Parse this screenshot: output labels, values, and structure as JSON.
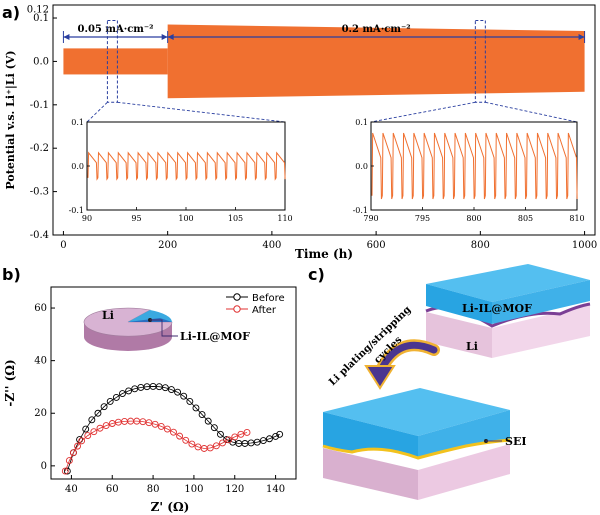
{
  "panels": {
    "a": "a)",
    "b": "b)",
    "c": "c)"
  },
  "chart_a": {
    "type": "line",
    "ylabel": "Potential v.s. Li⁺|Li (V)",
    "xlabel": "Time (h)",
    "xlim": [
      -20,
      1020
    ],
    "ylim": [
      -0.4,
      0.13
    ],
    "xticks": [
      "0",
      "200",
      "400",
      "600",
      "800",
      "1000"
    ],
    "yticks": [
      "0.1",
      "0.0",
      "-0.1",
      "-0.2",
      "-0.3",
      "-0.4"
    ],
    "yticks_top": "0.12",
    "regions": [
      {
        "label": "0.05 mA·cm⁻²",
        "x_start": 0,
        "x_end": 200,
        "amplitude": 0.03
      },
      {
        "label": "0.2 mA·cm⁻²",
        "x_start": 200,
        "x_end": 1000,
        "amplitude_start": 0.085,
        "amplitude_end": 0.07
      }
    ],
    "series_color": "#f07030",
    "insets": [
      {
        "xlim": [
          90,
          110
        ],
        "ylim": [
          -0.1,
          0.1
        ],
        "xticks": [
          "90",
          "95",
          "100",
          "105",
          "110"
        ],
        "yticks": [
          "0.1",
          "0.0",
          "-0.1"
        ],
        "amplitude": 0.03,
        "cycles": 20
      },
      {
        "xlim": [
          790,
          810
        ],
        "ylim": [
          -0.1,
          0.1
        ],
        "xticks": [
          "790",
          "795",
          "800",
          "805",
          "810"
        ],
        "yticks": [
          "0.1",
          "0.0",
          "-0.1"
        ],
        "amplitude": 0.075,
        "cycles": 20
      }
    ]
  },
  "chart_b": {
    "type": "scatter",
    "xlabel": "Z' (Ω)",
    "ylabel": "-Z'' (Ω)",
    "xlim": [
      30,
      150
    ],
    "ylim": [
      -5,
      68
    ],
    "xticks": [
      "40",
      "60",
      "80",
      "100",
      "120",
      "140"
    ],
    "yticks": [
      "0",
      "20",
      "40",
      "60"
    ],
    "series": [
      {
        "name": "Before",
        "color": "#000000",
        "points": [
          [
            38,
            -2
          ],
          [
            41,
            5
          ],
          [
            44,
            10
          ],
          [
            47,
            14
          ],
          [
            50,
            17.5
          ],
          [
            53,
            20
          ],
          [
            56,
            22.5
          ],
          [
            59,
            24.5
          ],
          [
            62,
            26
          ],
          [
            65,
            27.5
          ],
          [
            68,
            28.5
          ],
          [
            71,
            29.3
          ],
          [
            74,
            29.8
          ],
          [
            77,
            30.1
          ],
          [
            80,
            30.2
          ],
          [
            83,
            30.1
          ],
          [
            86,
            29.7
          ],
          [
            89,
            29
          ],
          [
            92,
            28
          ],
          [
            95,
            26.5
          ],
          [
            98,
            24.5
          ],
          [
            101,
            22
          ],
          [
            104,
            19.5
          ],
          [
            107,
            17
          ],
          [
            110,
            14.5
          ],
          [
            113,
            12
          ],
          [
            116,
            10
          ],
          [
            119,
            9
          ],
          [
            122,
            8.5
          ],
          [
            125,
            8.5
          ],
          [
            128,
            8.7
          ],
          [
            131,
            9
          ],
          [
            134,
            9.6
          ],
          [
            137,
            10.3
          ],
          [
            140,
            11.2
          ],
          [
            142,
            12
          ]
        ]
      },
      {
        "name": "After",
        "color": "#e03030",
        "points": [
          [
            37,
            -2
          ],
          [
            39,
            2
          ],
          [
            41,
            5
          ],
          [
            43,
            7.5
          ],
          [
            45,
            9.5
          ],
          [
            48,
            11.5
          ],
          [
            51,
            13
          ],
          [
            54,
            14.3
          ],
          [
            57,
            15.3
          ],
          [
            60,
            16.1
          ],
          [
            63,
            16.6
          ],
          [
            66,
            16.9
          ],
          [
            69,
            17
          ],
          [
            72,
            17
          ],
          [
            75,
            16.8
          ],
          [
            78,
            16.4
          ],
          [
            81,
            15.8
          ],
          [
            84,
            15
          ],
          [
            87,
            14
          ],
          [
            90,
            12.8
          ],
          [
            93,
            11.3
          ],
          [
            96,
            9.7
          ],
          [
            99,
            8.3
          ],
          [
            102,
            7.2
          ],
          [
            105,
            6.6
          ],
          [
            108,
            6.8
          ],
          [
            111,
            7.6
          ],
          [
            114,
            8.7
          ],
          [
            117,
            9.9
          ],
          [
            120,
            11
          ],
          [
            123,
            12
          ],
          [
            126,
            12.7
          ]
        ]
      }
    ],
    "pie_labels": {
      "li": "Li",
      "mof": "Li-IL@MOF"
    }
  },
  "diagram_c": {
    "top_labels": {
      "mof": "Li-IL@MOF",
      "li": "Li"
    },
    "arrow_label_1": "Li plating/stripping",
    "arrow_label_2": "cycles",
    "bottom_label": "SEI"
  }
}
